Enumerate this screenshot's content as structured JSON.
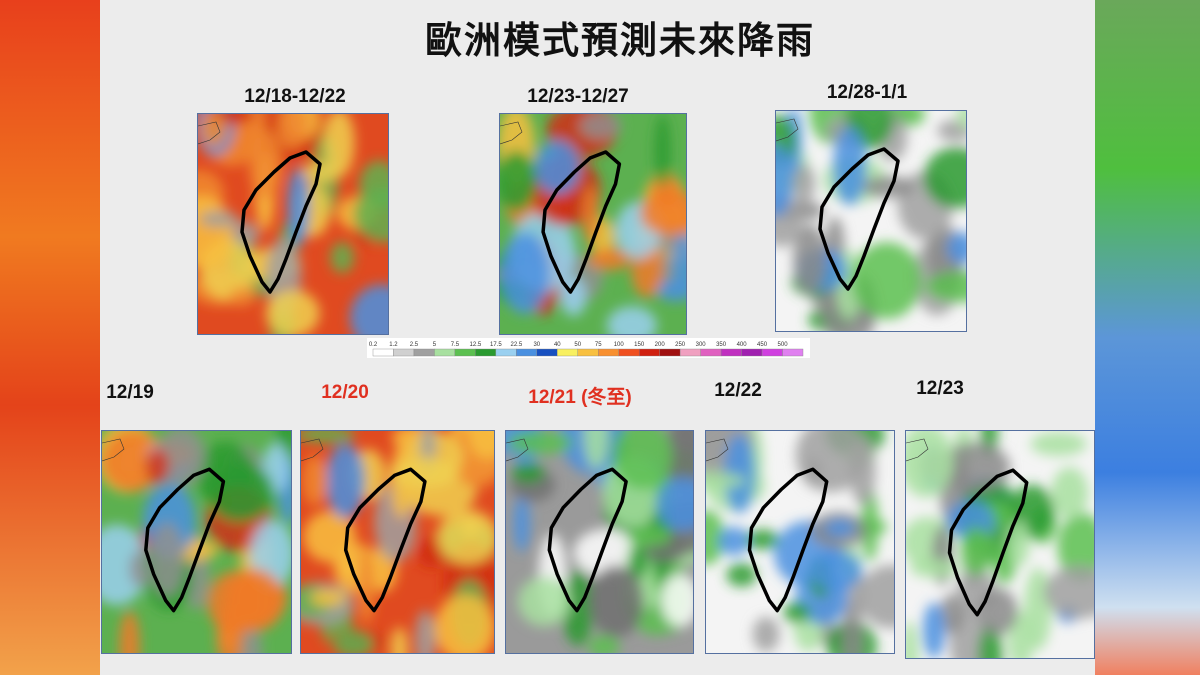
{
  "title": "歐洲模式預測未來降雨",
  "top_panels": [
    {
      "label": "12/18-12/22"
    },
    {
      "label": "12/23-12/27"
    },
    {
      "label": "12/28-1/1"
    }
  ],
  "colorbar": {
    "labels": [
      "0.2",
      "1.2",
      "2.5",
      "5",
      "7.5",
      "12.5",
      "17.5",
      "22.5",
      "30",
      "40",
      "50",
      "75",
      "100",
      "150",
      "200",
      "250",
      "300",
      "350",
      "400",
      "450",
      "500"
    ]
  },
  "bottom_panels": [
    {
      "label": "12/19"
    },
    {
      "label": "12/20"
    },
    {
      "label": "12/21 (冬至)"
    },
    {
      "label": "12/22"
    },
    {
      "label": "12/23"
    }
  ]
}
